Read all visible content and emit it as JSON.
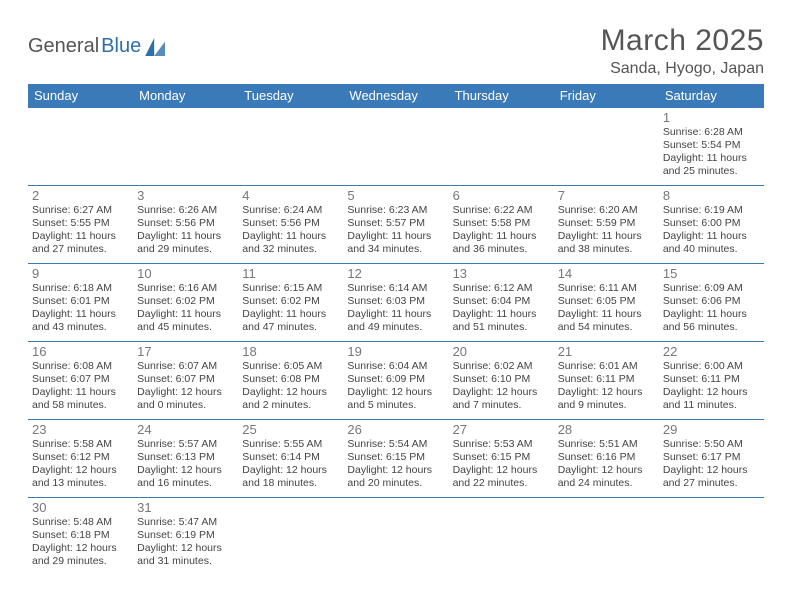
{
  "logo": {
    "part1": "General",
    "part2": "Blue"
  },
  "title": "March 2025",
  "location": "Sanda, Hyogo, Japan",
  "day_header_bg": "#3a7ab8",
  "day_header_fg": "#ffffff",
  "grid_line_color": "#3a7ab8",
  "days": [
    "Sunday",
    "Monday",
    "Tuesday",
    "Wednesday",
    "Thursday",
    "Friday",
    "Saturday"
  ],
  "weeks": [
    [
      null,
      null,
      null,
      null,
      null,
      null,
      {
        "n": "1",
        "sunrise": "6:28 AM",
        "sunset": "5:54 PM",
        "daylight": "11 hours and 25 minutes."
      }
    ],
    [
      {
        "n": "2",
        "sunrise": "6:27 AM",
        "sunset": "5:55 PM",
        "daylight": "11 hours and 27 minutes."
      },
      {
        "n": "3",
        "sunrise": "6:26 AM",
        "sunset": "5:56 PM",
        "daylight": "11 hours and 29 minutes."
      },
      {
        "n": "4",
        "sunrise": "6:24 AM",
        "sunset": "5:56 PM",
        "daylight": "11 hours and 32 minutes."
      },
      {
        "n": "5",
        "sunrise": "6:23 AM",
        "sunset": "5:57 PM",
        "daylight": "11 hours and 34 minutes."
      },
      {
        "n": "6",
        "sunrise": "6:22 AM",
        "sunset": "5:58 PM",
        "daylight": "11 hours and 36 minutes."
      },
      {
        "n": "7",
        "sunrise": "6:20 AM",
        "sunset": "5:59 PM",
        "daylight": "11 hours and 38 minutes."
      },
      {
        "n": "8",
        "sunrise": "6:19 AM",
        "sunset": "6:00 PM",
        "daylight": "11 hours and 40 minutes."
      }
    ],
    [
      {
        "n": "9",
        "sunrise": "6:18 AM",
        "sunset": "6:01 PM",
        "daylight": "11 hours and 43 minutes."
      },
      {
        "n": "10",
        "sunrise": "6:16 AM",
        "sunset": "6:02 PM",
        "daylight": "11 hours and 45 minutes."
      },
      {
        "n": "11",
        "sunrise": "6:15 AM",
        "sunset": "6:02 PM",
        "daylight": "11 hours and 47 minutes."
      },
      {
        "n": "12",
        "sunrise": "6:14 AM",
        "sunset": "6:03 PM",
        "daylight": "11 hours and 49 minutes."
      },
      {
        "n": "13",
        "sunrise": "6:12 AM",
        "sunset": "6:04 PM",
        "daylight": "11 hours and 51 minutes."
      },
      {
        "n": "14",
        "sunrise": "6:11 AM",
        "sunset": "6:05 PM",
        "daylight": "11 hours and 54 minutes."
      },
      {
        "n": "15",
        "sunrise": "6:09 AM",
        "sunset": "6:06 PM",
        "daylight": "11 hours and 56 minutes."
      }
    ],
    [
      {
        "n": "16",
        "sunrise": "6:08 AM",
        "sunset": "6:07 PM",
        "daylight": "11 hours and 58 minutes."
      },
      {
        "n": "17",
        "sunrise": "6:07 AM",
        "sunset": "6:07 PM",
        "daylight": "12 hours and 0 minutes."
      },
      {
        "n": "18",
        "sunrise": "6:05 AM",
        "sunset": "6:08 PM",
        "daylight": "12 hours and 2 minutes."
      },
      {
        "n": "19",
        "sunrise": "6:04 AM",
        "sunset": "6:09 PM",
        "daylight": "12 hours and 5 minutes."
      },
      {
        "n": "20",
        "sunrise": "6:02 AM",
        "sunset": "6:10 PM",
        "daylight": "12 hours and 7 minutes."
      },
      {
        "n": "21",
        "sunrise": "6:01 AM",
        "sunset": "6:11 PM",
        "daylight": "12 hours and 9 minutes."
      },
      {
        "n": "22",
        "sunrise": "6:00 AM",
        "sunset": "6:11 PM",
        "daylight": "12 hours and 11 minutes."
      }
    ],
    [
      {
        "n": "23",
        "sunrise": "5:58 AM",
        "sunset": "6:12 PM",
        "daylight": "12 hours and 13 minutes."
      },
      {
        "n": "24",
        "sunrise": "5:57 AM",
        "sunset": "6:13 PM",
        "daylight": "12 hours and 16 minutes."
      },
      {
        "n": "25",
        "sunrise": "5:55 AM",
        "sunset": "6:14 PM",
        "daylight": "12 hours and 18 minutes."
      },
      {
        "n": "26",
        "sunrise": "5:54 AM",
        "sunset": "6:15 PM",
        "daylight": "12 hours and 20 minutes."
      },
      {
        "n": "27",
        "sunrise": "5:53 AM",
        "sunset": "6:15 PM",
        "daylight": "12 hours and 22 minutes."
      },
      {
        "n": "28",
        "sunrise": "5:51 AM",
        "sunset": "6:16 PM",
        "daylight": "12 hours and 24 minutes."
      },
      {
        "n": "29",
        "sunrise": "5:50 AM",
        "sunset": "6:17 PM",
        "daylight": "12 hours and 27 minutes."
      }
    ],
    [
      {
        "n": "30",
        "sunrise": "5:48 AM",
        "sunset": "6:18 PM",
        "daylight": "12 hours and 29 minutes."
      },
      {
        "n": "31",
        "sunrise": "5:47 AM",
        "sunset": "6:19 PM",
        "daylight": "12 hours and 31 minutes."
      },
      null,
      null,
      null,
      null,
      null
    ]
  ],
  "labels": {
    "sunrise_prefix": "Sunrise: ",
    "sunset_prefix": "Sunset: ",
    "daylight_prefix": "Daylight: "
  }
}
